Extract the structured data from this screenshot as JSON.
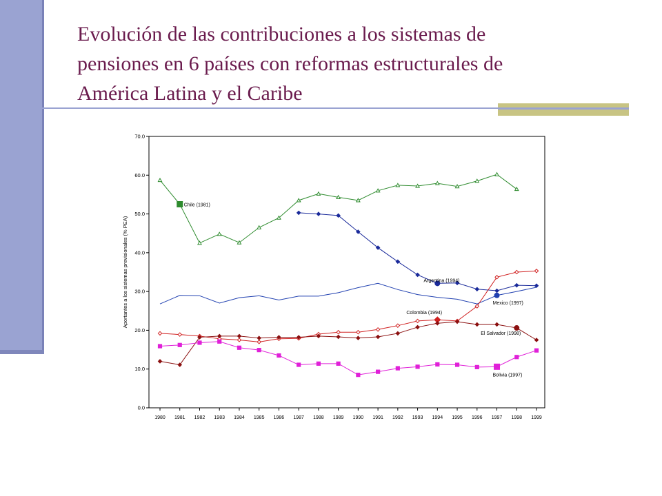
{
  "slide": {
    "title_lines": [
      "Evolución de las contribuciones a los sistemas de",
      "pensiones en 6 países con reformas estructurales de",
      "América Latina y el Caribe"
    ],
    "colors": {
      "side_bar": "#9aa3d2",
      "title": "#6a1b4d",
      "accent": "#c8c483"
    }
  },
  "chart_data": {
    "type": "line",
    "xlabel": "",
    "ylabel": "Aportantes a los sistemas previsionales (% PEA)",
    "ylim": [
      0,
      70
    ],
    "yticks": [
      "0.0",
      "10.0",
      "20.0",
      "30.0",
      "40.0",
      "50.0",
      "60.0",
      "70.0"
    ],
    "ytick_values": [
      0,
      10,
      20,
      30,
      40,
      50,
      60,
      70
    ],
    "grid": false,
    "legend": "inline labels",
    "categories": [
      "1980",
      "1981",
      "1982",
      "1983",
      "1984",
      "1985",
      "1986",
      "1987",
      "1988",
      "1989",
      "1990",
      "1991",
      "1992",
      "1993",
      "1994",
      "1995",
      "1996",
      "1997",
      "1998",
      "1999"
    ],
    "series": [
      {
        "name": "Chile (1981)",
        "color": "#2e8b2e",
        "marker": "triangle",
        "values": [
          58.7,
          52.5,
          42.5,
          44.8,
          42.6,
          46.5,
          49.0,
          53.5,
          55.2,
          54.3,
          53.5,
          56.0,
          57.4,
          57.2,
          57.9,
          57.1,
          58.5,
          60.2,
          56.4,
          null
        ],
        "reform_index": 1
      },
      {
        "name": "Argentina (1994)",
        "color": "#1a2a9a",
        "marker": "diamond",
        "values": [
          null,
          null,
          null,
          null,
          null,
          null,
          null,
          50.3,
          50.0,
          49.6,
          45.4,
          41.3,
          37.7,
          34.3,
          32.1,
          32.2,
          30.6,
          30.2,
          31.6,
          31.5
        ],
        "reform_index": 14
      },
      {
        "name": "Mexico (1997)",
        "color": "#2040b0",
        "marker": "none",
        "values": [
          26.8,
          29.0,
          28.9,
          27.0,
          28.4,
          28.9,
          27.8,
          28.8,
          28.8,
          29.7,
          31.0,
          32.1,
          30.5,
          29.2,
          28.5,
          28.0,
          26.8,
          29.0,
          30.0,
          31.1
        ],
        "reform_index": 17
      },
      {
        "name": "Colombia (1994)",
        "color": "#d02020",
        "marker": "open-diamond",
        "values": [
          19.2,
          18.9,
          18.5,
          17.8,
          17.5,
          17.0,
          17.8,
          17.9,
          19.0,
          19.5,
          19.5,
          20.2,
          21.2,
          22.4,
          22.7,
          22.4,
          26.2,
          33.7,
          35.0,
          35.3
        ],
        "reform_index": 14
      },
      {
        "name": "El Salvador (1998)",
        "color": "#8b1010",
        "marker": "diamond",
        "values": [
          12.0,
          11.1,
          18.2,
          18.5,
          18.5,
          18.0,
          18.2,
          18.2,
          18.5,
          18.3,
          18.0,
          18.3,
          19.2,
          20.8,
          21.8,
          22.2,
          21.5,
          21.5,
          20.6,
          17.5
        ],
        "reform_index": 18
      },
      {
        "name": "Bolivia (1997)",
        "color": "#e020d8",
        "marker": "square",
        "values": [
          15.9,
          16.2,
          16.8,
          17.1,
          15.5,
          14.9,
          13.5,
          11.1,
          11.4,
          11.4,
          8.5,
          9.3,
          10.2,
          10.6,
          11.2,
          11.1,
          10.5,
          10.6,
          13.1,
          14.8
        ],
        "reform_index": 17
      }
    ]
  }
}
